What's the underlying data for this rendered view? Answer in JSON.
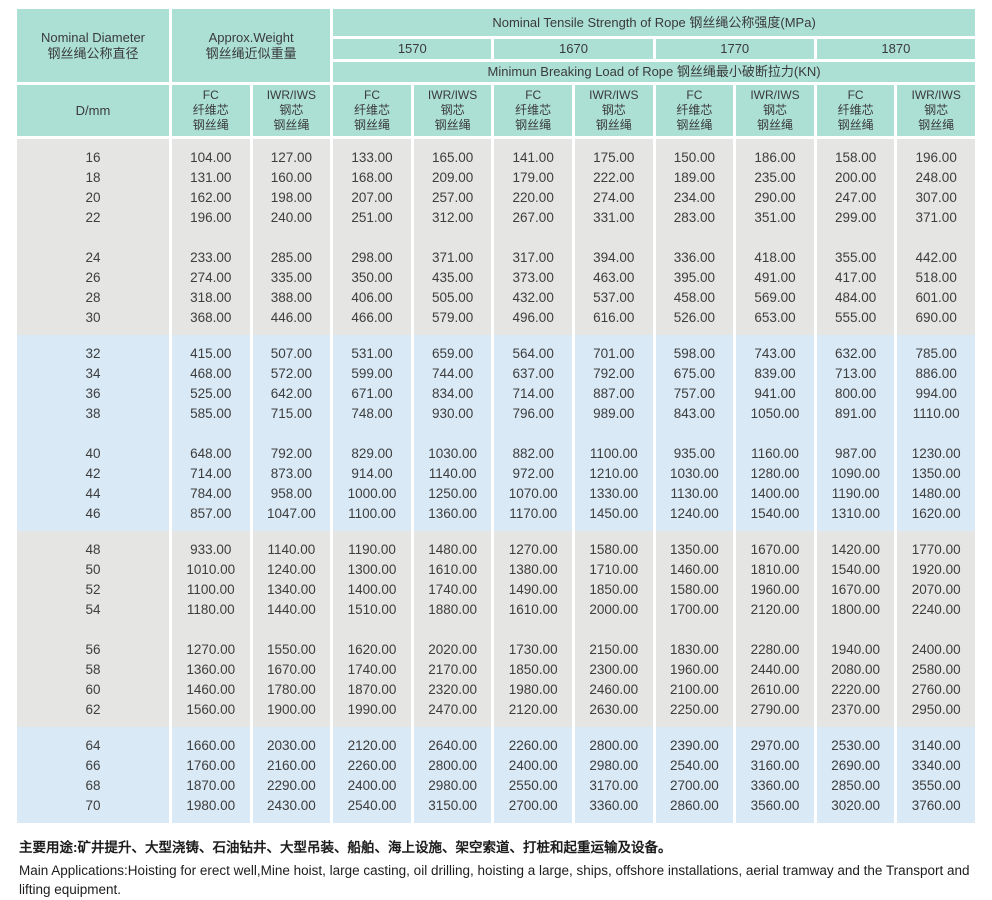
{
  "colors": {
    "header_bg": "#ace0d5",
    "band_gray": "#e5e5e3",
    "band_blue": "#d9e9f5",
    "text": "#3d3d3d"
  },
  "header": {
    "nominal_diameter_en": "Nominal Diameter",
    "nominal_diameter_cn": "钢丝绳公称直径",
    "approx_weight_en": "Approx.Weight",
    "approx_weight_cn": "钢丝绳近似重量",
    "tensile_strength_label": "Nominal Tensile Strength of Rope  钢丝绳公称强度(MPa)",
    "strengths": [
      "1570",
      "1670",
      "1770",
      "1870"
    ],
    "breaking_load_label": "Minimun Breaking Load of Rope  钢丝绳最小破断拉力(KN)",
    "dmm_label": "D/mm",
    "core_types": [
      {
        "lines": [
          "FC",
          "纤维芯",
          "钢丝绳"
        ]
      },
      {
        "lines": [
          "IWR/IWS",
          "钢芯",
          "钢丝绳"
        ]
      }
    ],
    "core_type_pairs": 5
  },
  "table": {
    "bands": [
      {
        "color": "gray",
        "groups": [
          [
            [
              "16",
              "104.00",
              "127.00",
              "133.00",
              "165.00",
              "141.00",
              "175.00",
              "150.00",
              "186.00",
              "158.00",
              "196.00"
            ],
            [
              "18",
              "131.00",
              "160.00",
              "168.00",
              "209.00",
              "179.00",
              "222.00",
              "189.00",
              "235.00",
              "200.00",
              "248.00"
            ],
            [
              "20",
              "162.00",
              "198.00",
              "207.00",
              "257.00",
              "220.00",
              "274.00",
              "234.00",
              "290.00",
              "247.00",
              "307.00"
            ],
            [
              "22",
              "196.00",
              "240.00",
              "251.00",
              "312.00",
              "267.00",
              "331.00",
              "283.00",
              "351.00",
              "299.00",
              "371.00"
            ]
          ],
          [
            [
              "24",
              "233.00",
              "285.00",
              "298.00",
              "371.00",
              "317.00",
              "394.00",
              "336.00",
              "418.00",
              "355.00",
              "442.00"
            ],
            [
              "26",
              "274.00",
              "335.00",
              "350.00",
              "435.00",
              "373.00",
              "463.00",
              "395.00",
              "491.00",
              "417.00",
              "518.00"
            ],
            [
              "28",
              "318.00",
              "388.00",
              "406.00",
              "505.00",
              "432.00",
              "537.00",
              "458.00",
              "569.00",
              "484.00",
              "601.00"
            ],
            [
              "30",
              "368.00",
              "446.00",
              "466.00",
              "579.00",
              "496.00",
              "616.00",
              "526.00",
              "653.00",
              "555.00",
              "690.00"
            ]
          ]
        ]
      },
      {
        "color": "blue",
        "groups": [
          [
            [
              "32",
              "415.00",
              "507.00",
              "531.00",
              "659.00",
              "564.00",
              "701.00",
              "598.00",
              "743.00",
              "632.00",
              "785.00"
            ],
            [
              "34",
              "468.00",
              "572.00",
              "599.00",
              "744.00",
              "637.00",
              "792.00",
              "675.00",
              "839.00",
              "713.00",
              "886.00"
            ],
            [
              "36",
              "525.00",
              "642.00",
              "671.00",
              "834.00",
              "714.00",
              "887.00",
              "757.00",
              "941.00",
              "800.00",
              "994.00"
            ],
            [
              "38",
              "585.00",
              "715.00",
              "748.00",
              "930.00",
              "796.00",
              "989.00",
              "843.00",
              "1050.00",
              "891.00",
              "1110.00"
            ]
          ],
          [
            [
              "40",
              "648.00",
              "792.00",
              "829.00",
              "1030.00",
              "882.00",
              "1100.00",
              "935.00",
              "1160.00",
              "987.00",
              "1230.00"
            ],
            [
              "42",
              "714.00",
              "873.00",
              "914.00",
              "1140.00",
              "972.00",
              "1210.00",
              "1030.00",
              "1280.00",
              "1090.00",
              "1350.00"
            ],
            [
              "44",
              "784.00",
              "958.00",
              "1000.00",
              "1250.00",
              "1070.00",
              "1330.00",
              "1130.00",
              "1400.00",
              "1190.00",
              "1480.00"
            ],
            [
              "46",
              "857.00",
              "1047.00",
              "1100.00",
              "1360.00",
              "1170.00",
              "1450.00",
              "1240.00",
              "1540.00",
              "1310.00",
              "1620.00"
            ]
          ]
        ]
      },
      {
        "color": "gray",
        "groups": [
          [
            [
              "48",
              "933.00",
              "1140.00",
              "1190.00",
              "1480.00",
              "1270.00",
              "1580.00",
              "1350.00",
              "1670.00",
              "1420.00",
              "1770.00"
            ],
            [
              "50",
              "1010.00",
              "1240.00",
              "1300.00",
              "1610.00",
              "1380.00",
              "1710.00",
              "1460.00",
              "1810.00",
              "1540.00",
              "1920.00"
            ],
            [
              "52",
              "1100.00",
              "1340.00",
              "1400.00",
              "1740.00",
              "1490.00",
              "1850.00",
              "1580.00",
              "1960.00",
              "1670.00",
              "2070.00"
            ],
            [
              "54",
              "1180.00",
              "1440.00",
              "1510.00",
              "1880.00",
              "1610.00",
              "2000.00",
              "1700.00",
              "2120.00",
              "1800.00",
              "2240.00"
            ]
          ],
          [
            [
              "56",
              "1270.00",
              "1550.00",
              "1620.00",
              "2020.00",
              "1730.00",
              "2150.00",
              "1830.00",
              "2280.00",
              "1940.00",
              "2400.00"
            ],
            [
              "58",
              "1360.00",
              "1670.00",
              "1740.00",
              "2170.00",
              "1850.00",
              "2300.00",
              "1960.00",
              "2440.00",
              "2080.00",
              "2580.00"
            ],
            [
              "60",
              "1460.00",
              "1780.00",
              "1870.00",
              "2320.00",
              "1980.00",
              "2460.00",
              "2100.00",
              "2610.00",
              "2220.00",
              "2760.00"
            ],
            [
              "62",
              "1560.00",
              "1900.00",
              "1990.00",
              "2470.00",
              "2120.00",
              "2630.00",
              "2250.00",
              "2790.00",
              "2370.00",
              "2950.00"
            ]
          ]
        ]
      },
      {
        "color": "blue",
        "groups": [
          [
            [
              "64",
              "1660.00",
              "2030.00",
              "2120.00",
              "2640.00",
              "2260.00",
              "2800.00",
              "2390.00",
              "2970.00",
              "2530.00",
              "3140.00"
            ],
            [
              "66",
              "1760.00",
              "2160.00",
              "2260.00",
              "2800.00",
              "2400.00",
              "2980.00",
              "2540.00",
              "3160.00",
              "2690.00",
              "3340.00"
            ],
            [
              "68",
              "1870.00",
              "2290.00",
              "2400.00",
              "2980.00",
              "2550.00",
              "3170.00",
              "2700.00",
              "3360.00",
              "2850.00",
              "3550.00"
            ],
            [
              "70",
              "1980.00",
              "2430.00",
              "2540.00",
              "3150.00",
              "2700.00",
              "3360.00",
              "2860.00",
              "3560.00",
              "3020.00",
              "3760.00"
            ]
          ]
        ]
      }
    ]
  },
  "footer": {
    "applications_cn": "主要用途:矿井提升、大型浇铸、石油钻井、大型吊装、船舶、海上设施、架空索道、打桩和起重运输及设备。",
    "applications_en": "Main Applications:Hoisting for erect well,Mine hoist, large casting, oil drilling, hoisting a large, ships, offshore installations, aerial tramway and the Transport and lifting equipment."
  }
}
